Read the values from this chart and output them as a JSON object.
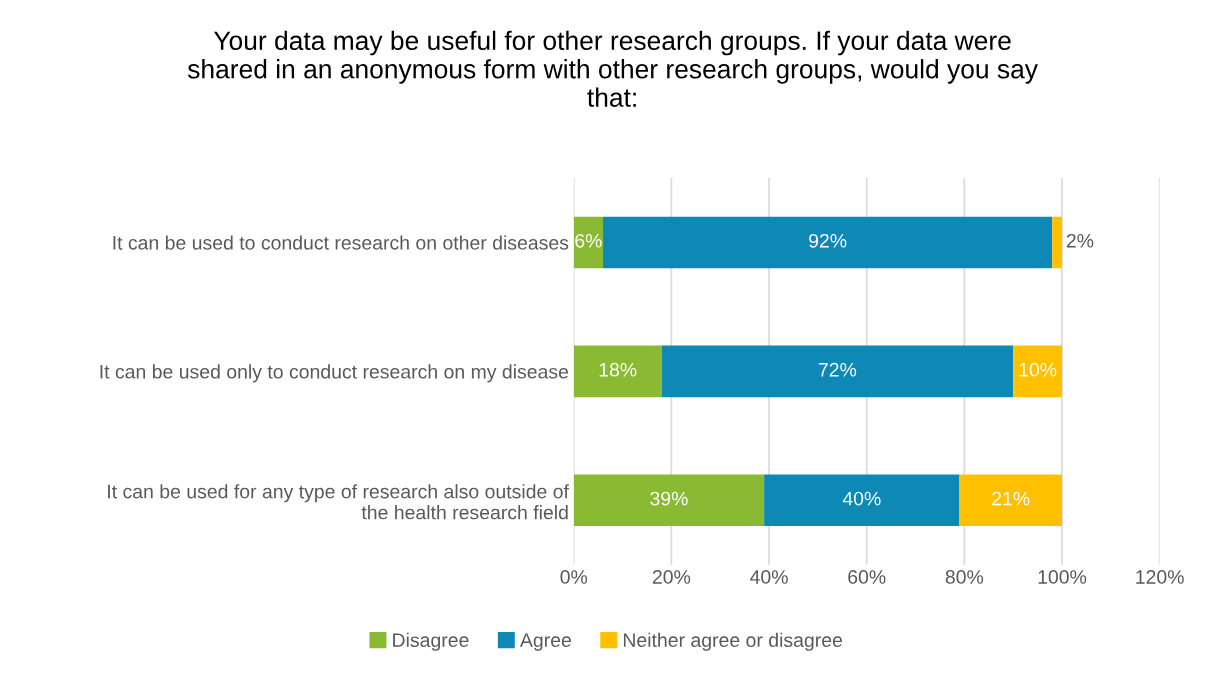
{
  "chart_data": {
    "type": "bar",
    "orientation": "horizontal",
    "stacked": true,
    "title": "Your data may be useful for other research groups. If your data were\nshared in an anonymous form with other research groups, would you say\nthat:",
    "categories": [
      "It can be used to conduct research on other diseases",
      "It can be used only to conduct research on my disease",
      "It can be used for any type of research also outside of\nthe health research field"
    ],
    "series": [
      {
        "name": "Disagree",
        "color": "#8ab933",
        "values": [
          6,
          18,
          39
        ],
        "value_labels": [
          "6%",
          "18%",
          "39%"
        ]
      },
      {
        "name": "Agree",
        "color": "#0e88b4",
        "values": [
          92,
          72,
          40
        ],
        "value_labels": [
          "92%",
          "72%",
          "40%"
        ]
      },
      {
        "name": "Neither agree or disagree",
        "color": "#ffc000",
        "values": [
          2,
          10,
          21
        ],
        "value_labels": [
          "2%",
          "10%",
          "21%"
        ]
      }
    ],
    "xlim": [
      0,
      120
    ],
    "xticks": [
      {
        "value": 0,
        "label": "0%"
      },
      {
        "value": 20,
        "label": "20%"
      },
      {
        "value": 40,
        "label": "40%"
      },
      {
        "value": 60,
        "label": "60%"
      },
      {
        "value": 80,
        "label": "80%"
      },
      {
        "value": 100,
        "label": "100%"
      },
      {
        "value": 120,
        "label": "120%"
      }
    ],
    "grid": "x",
    "legend": "bottom"
  }
}
